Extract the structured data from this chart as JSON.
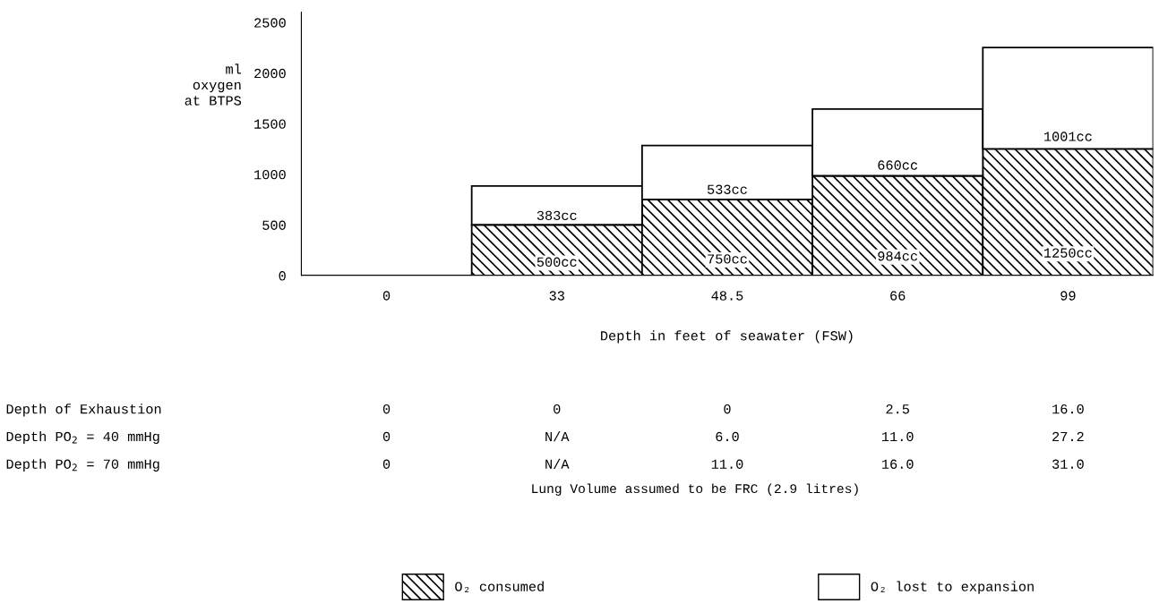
{
  "chart_data": {
    "type": "bar",
    "stacked": true,
    "categories": [
      "0",
      "33",
      "48.5",
      "66",
      "99"
    ],
    "series": [
      {
        "name": "O₂ consumed",
        "color": "#000000",
        "values": [
          0,
          500,
          750,
          984,
          1250
        ],
        "value_labels": [
          null,
          "500cc",
          "750cc",
          "984cc",
          "1250cc"
        ]
      },
      {
        "name": "O₂ lost to expansion",
        "color": "#000000",
        "values": [
          0,
          383,
          533,
          660,
          1001
        ],
        "value_labels": [
          null,
          "383cc",
          "533cc",
          "660cc",
          "1001cc"
        ]
      }
    ],
    "ylim": [
      0,
      2600
    ],
    "yticks": [
      0,
      500,
      1000,
      1500,
      2000,
      2500
    ],
    "xlabel": "Depth in feet of seawater (FSW)",
    "ylabel": "ml\noxygen\nat BTPS",
    "grid": false,
    "legend": "bottom",
    "annotations": [
      "Depth of Exhaustion",
      "0",
      "0",
      "0",
      "2.5",
      "16.0",
      "Depth PO$_{2}$ = 40 mmHg",
      "0",
      "N/A",
      "6.0",
      "11.0",
      "27.2",
      "Depth PO$_{2}$ = 70 mmHg",
      "0",
      "N/A",
      "11.0",
      "16.0",
      "31.0",
      "Lung Volume assumed to be FRC (2.9 litres)"
    ]
  }
}
